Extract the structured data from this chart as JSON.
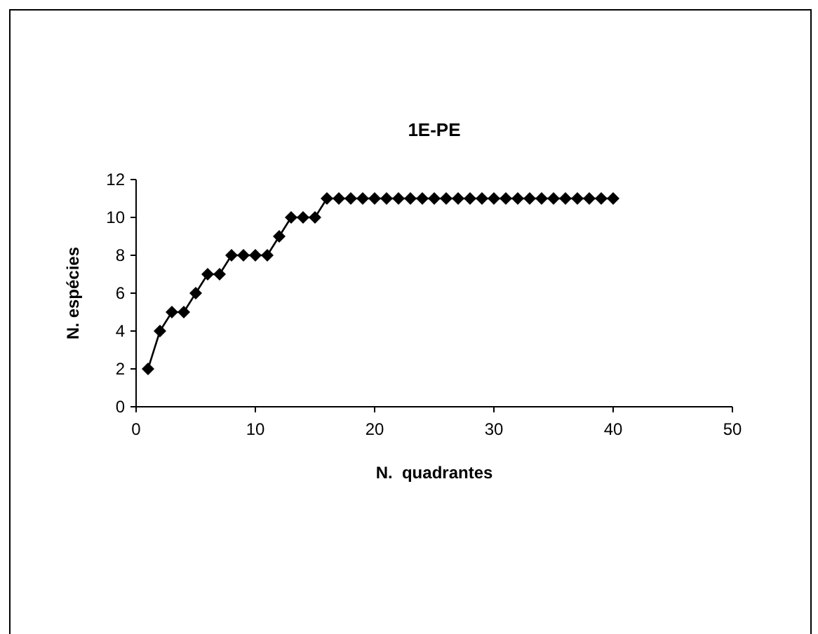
{
  "chart_data": {
    "type": "line",
    "title": "1E-PE",
    "xlabel": "N.  quadrantes",
    "ylabel": "N. espécies",
    "x": [
      1,
      2,
      3,
      4,
      5,
      6,
      7,
      8,
      9,
      10,
      11,
      12,
      13,
      14,
      15,
      16,
      17,
      18,
      19,
      20,
      21,
      22,
      23,
      24,
      25,
      26,
      27,
      28,
      29,
      30,
      31,
      32,
      33,
      34,
      35,
      36,
      37,
      38,
      39,
      40
    ],
    "series": [
      {
        "color": "#000000",
        "values": [
          2,
          4,
          5,
          5,
          6,
          7,
          7,
          8,
          8,
          8,
          8,
          9,
          10,
          10,
          10,
          11,
          11,
          11,
          11,
          11,
          11,
          11,
          11,
          11,
          11,
          11,
          11,
          11,
          11,
          11,
          11,
          11,
          11,
          11,
          11,
          11,
          11,
          11,
          11,
          11
        ]
      }
    ],
    "xlim": [
      0,
      50
    ],
    "xticks": [
      0,
      10,
      20,
      30,
      40,
      50
    ],
    "ylim": [
      0,
      12
    ],
    "yticks": [
      0,
      2,
      4,
      6,
      8,
      10,
      12
    ],
    "marker": "diamond",
    "line_style": "solid"
  }
}
